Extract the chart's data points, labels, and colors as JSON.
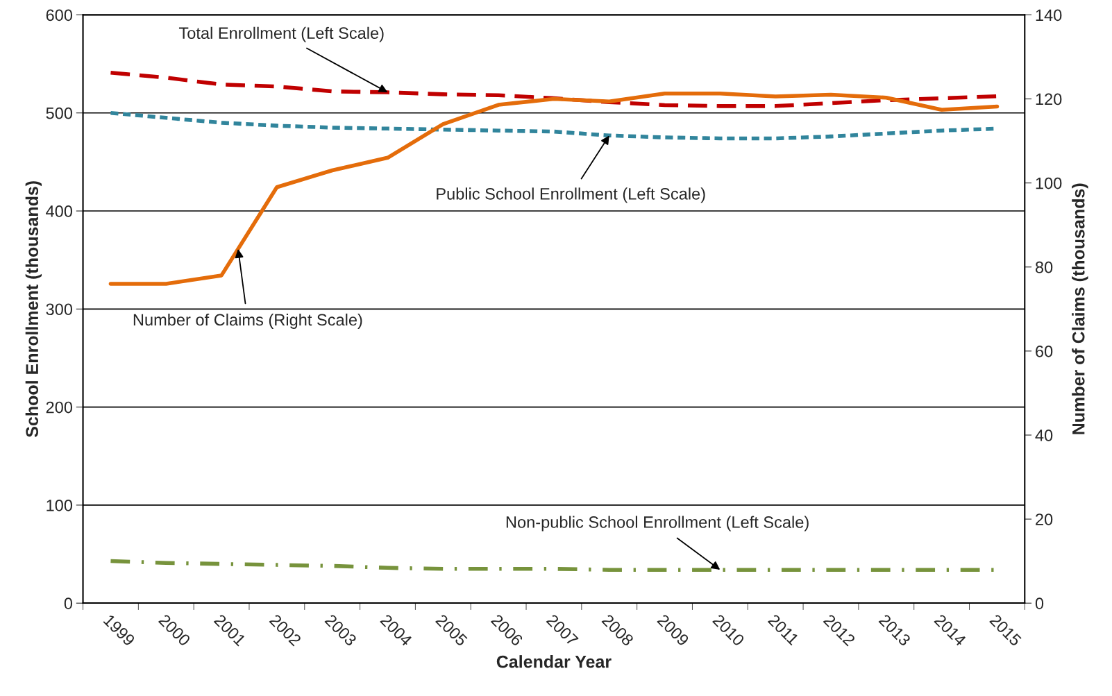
{
  "chart_data": {
    "type": "line",
    "xlabel": "Calendar Year",
    "ylabel": "School Enrollment (thousands)",
    "y2label": "Number of Claims (thousands)",
    "categories": [
      "1999",
      "2000",
      "2001",
      "2002",
      "2003",
      "2004",
      "2005",
      "2006",
      "2007",
      "2008",
      "2009",
      "2010",
      "2011",
      "2012",
      "2013",
      "2014",
      "2015"
    ],
    "series": [
      {
        "name": "Total Enrollment (Left Scale)",
        "color": "#c00000",
        "line_style": "dashed",
        "values": [
          541,
          536,
          529,
          527,
          522,
          521,
          519,
          518,
          515,
          511,
          508,
          507,
          507,
          510,
          513,
          515,
          517
        ]
      },
      {
        "name": "Public School Enrollment (Left Scale)",
        "color": "#31859c",
        "line_style": "dotted",
        "values": [
          500,
          495,
          490,
          487,
          485,
          484,
          483,
          482,
          481,
          477,
          475,
          474,
          474,
          476,
          479,
          482,
          484
        ]
      },
      {
        "name": "Non-public School Enrollment (Left Scale)",
        "color": "#77933c",
        "line_style": "dashdot",
        "values": [
          43,
          41,
          40,
          39,
          38,
          36,
          35,
          35,
          35,
          34,
          34,
          34,
          34,
          34,
          34,
          34,
          34
        ]
      },
      {
        "name": "Number of Claims (Right Scale)",
        "color": "#e46c0a",
        "line_style": "solid",
        "axis": "y2",
        "values": [
          76,
          76,
          78,
          99,
          103,
          106,
          114,
          118.6,
          120,
          119.4,
          121.3,
          121.3,
          120.6,
          121,
          120.3,
          117.4,
          118.2
        ]
      }
    ],
    "ylim": [
      0,
      600
    ],
    "yticks": [
      0,
      100,
      200,
      300,
      400,
      500,
      600
    ],
    "y2lim": [
      0,
      140
    ],
    "y2ticks": [
      0,
      20,
      40,
      60,
      80,
      100,
      120,
      140
    ],
    "grid": "y",
    "legend": false,
    "marker": "none"
  }
}
